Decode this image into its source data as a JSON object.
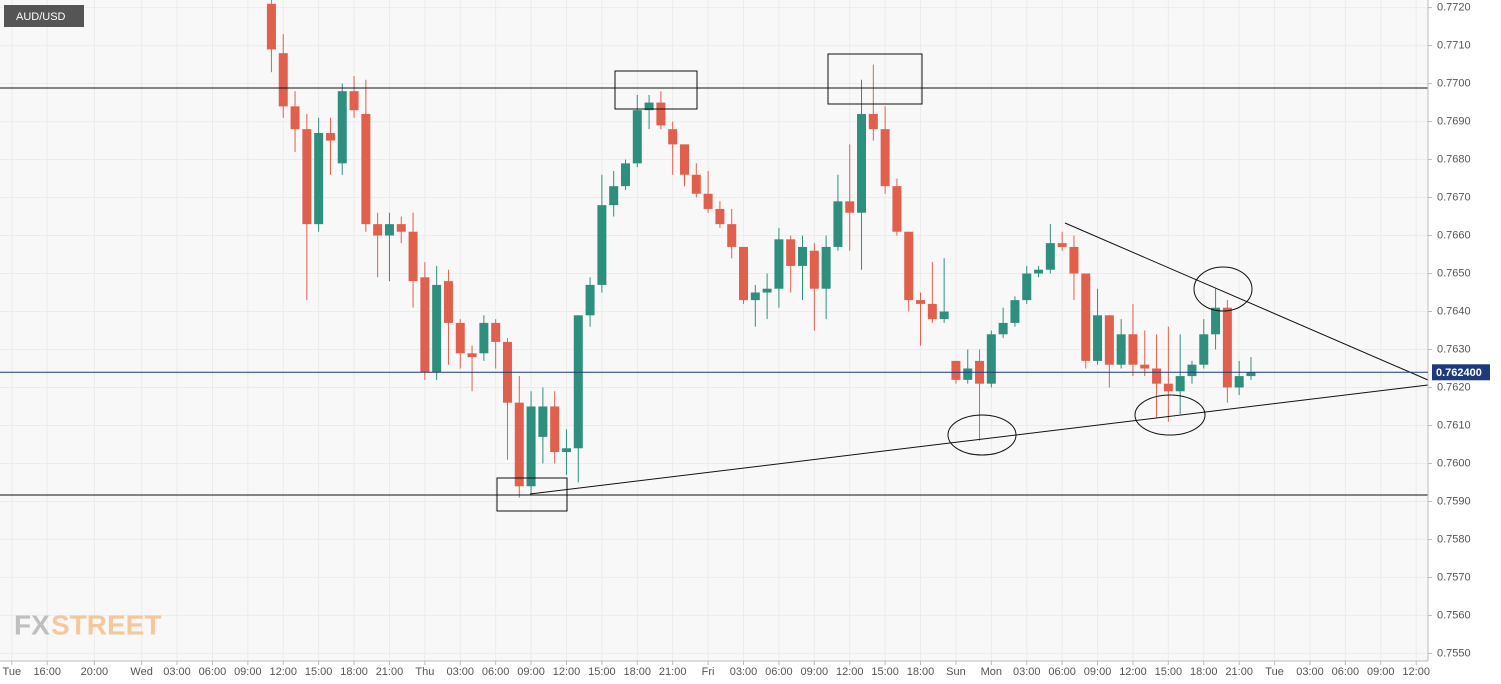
{
  "chart_data": {
    "type": "candlestick",
    "symbol_label": "AUD/USD",
    "logo": {
      "fx": "FX",
      "street": "STREET"
    },
    "xlim": [
      -12,
      109
    ],
    "xticks": [
      {
        "value": -11,
        "label": "Tue"
      },
      {
        "value": -8,
        "label": "16:00"
      },
      {
        "value": -4,
        "label": "20:00"
      },
      {
        "value": 0,
        "label": "Wed"
      },
      {
        "value": 3,
        "label": "03:00"
      },
      {
        "value": 6,
        "label": "06:00"
      },
      {
        "value": 9,
        "label": "09:00"
      },
      {
        "value": 12,
        "label": "12:00"
      },
      {
        "value": 15,
        "label": "15:00"
      },
      {
        "value": 18,
        "label": "18:00"
      },
      {
        "value": 21,
        "label": "21:00"
      },
      {
        "value": 24,
        "label": "Thu"
      },
      {
        "value": 27,
        "label": "03:00"
      },
      {
        "value": 30,
        "label": "06:00"
      },
      {
        "value": 33,
        "label": "09:00"
      },
      {
        "value": 36,
        "label": "12:00"
      },
      {
        "value": 39,
        "label": "15:00"
      },
      {
        "value": 42,
        "label": "18:00"
      },
      {
        "value": 45,
        "label": "21:00"
      },
      {
        "value": 48,
        "label": "Fri"
      },
      {
        "value": 51,
        "label": "03:00"
      },
      {
        "value": 54,
        "label": "06:00"
      },
      {
        "value": 57,
        "label": "09:00"
      },
      {
        "value": 60,
        "label": "12:00"
      },
      {
        "value": 63,
        "label": "15:00"
      },
      {
        "value": 66,
        "label": "18:00"
      },
      {
        "value": 69,
        "label": "Sun"
      },
      {
        "value": 72,
        "label": "Mon"
      },
      {
        "value": 75,
        "label": "03:00"
      },
      {
        "value": 78,
        "label": "06:00"
      },
      {
        "value": 81,
        "label": "09:00"
      },
      {
        "value": 84,
        "label": "12:00"
      },
      {
        "value": 87,
        "label": "15:00"
      },
      {
        "value": 90,
        "label": "18:00"
      },
      {
        "value": 93,
        "label": "21:00"
      },
      {
        "value": 96,
        "label": "Tue"
      },
      {
        "value": 99,
        "label": "03:00"
      },
      {
        "value": 102,
        "label": "06:00"
      },
      {
        "value": 105,
        "label": "09:00"
      },
      {
        "value": 108,
        "label": "12:00"
      }
    ],
    "ylim": [
      0.7548,
      0.7722
    ],
    "yticks": [
      {
        "value": 0.772,
        "label": "0.7720"
      },
      {
        "value": 0.771,
        "label": "0.7710"
      },
      {
        "value": 0.77,
        "label": "0.7700"
      },
      {
        "value": 0.769,
        "label": "0.7690"
      },
      {
        "value": 0.768,
        "label": "0.7680"
      },
      {
        "value": 0.767,
        "label": "0.7670"
      },
      {
        "value": 0.766,
        "label": "0.7660"
      },
      {
        "value": 0.765,
        "label": "0.7650"
      },
      {
        "value": 0.764,
        "label": "0.7640"
      },
      {
        "value": 0.763,
        "label": "0.7630"
      },
      {
        "value": 0.762,
        "label": "0.7620"
      },
      {
        "value": 0.761,
        "label": "0.7610"
      },
      {
        "value": 0.76,
        "label": "0.7600"
      },
      {
        "value": 0.759,
        "label": "0.7590"
      },
      {
        "value": 0.758,
        "label": "0.7580"
      },
      {
        "value": 0.757,
        "label": "0.7570"
      },
      {
        "value": 0.756,
        "label": "0.7560"
      },
      {
        "value": 0.755,
        "label": "0.7550"
      }
    ],
    "grid": true,
    "up_color": "#2f8f7f",
    "down_color": "#e0604d",
    "last_price": {
      "value": 0.7624,
      "label": "0.762400",
      "color": "#1f3a7a"
    },
    "x": [
      11,
      12,
      13,
      14,
      15,
      16,
      17,
      18,
      19,
      20,
      21,
      22,
      23,
      24,
      25,
      26,
      27,
      28,
      29,
      30,
      31,
      32,
      33,
      34,
      35,
      36,
      37,
      38,
      39,
      40,
      41,
      42,
      43,
      44,
      45,
      46,
      47,
      48,
      49,
      50,
      51,
      52,
      53,
      54,
      55,
      56,
      57,
      58,
      59,
      60,
      61,
      62,
      63,
      64,
      65,
      66,
      67,
      68,
      69,
      70,
      71,
      72,
      73,
      74,
      75,
      76,
      77,
      78,
      79,
      80,
      81,
      82,
      83,
      84,
      85,
      86,
      87,
      88,
      89,
      90,
      91,
      92,
      93,
      94
    ],
    "open": [
      0.7721,
      0.7708,
      0.7694,
      0.7688,
      0.7663,
      0.7687,
      0.7679,
      0.7698,
      0.7692,
      0.7663,
      0.766,
      0.7663,
      0.7661,
      0.7649,
      0.7624,
      0.7648,
      0.7637,
      0.7629,
      0.7629,
      0.7637,
      0.7632,
      0.7616,
      0.7594,
      0.7607,
      0.7615,
      0.7603,
      0.7604,
      0.7639,
      0.7647,
      0.7668,
      0.7673,
      0.7679,
      0.7693,
      0.7695,
      0.7688,
      0.7684,
      0.7676,
      0.7671,
      0.7667,
      0.7663,
      0.7657,
      0.7643,
      0.7645,
      0.7646,
      0.7659,
      0.7652,
      0.7656,
      0.7646,
      0.7657,
      0.7669,
      0.7666,
      0.7692,
      0.7688,
      0.7673,
      0.7661,
      0.7643,
      0.7642,
      0.7638,
      0.7627,
      0.7622,
      0.7627,
      0.7621,
      0.7634,
      0.7637,
      0.7643,
      0.765,
      0.7651,
      0.7658,
      0.7657,
      0.765,
      0.7627,
      0.7639,
      0.7626,
      0.7634,
      0.7626,
      0.7625,
      0.7621,
      0.7619,
      0.7623,
      0.7626,
      0.7634,
      0.7641,
      0.762,
      0.7623
    ],
    "high": [
      0.7722,
      0.7713,
      0.7698,
      0.7692,
      0.7691,
      0.7691,
      0.77,
      0.7702,
      0.7701,
      0.7666,
      0.7666,
      0.7665,
      0.7666,
      0.7653,
      0.7652,
      0.7651,
      0.7638,
      0.7631,
      0.7639,
      0.7638,
      0.7633,
      0.7623,
      0.7619,
      0.762,
      0.7619,
      0.7609,
      0.7639,
      0.7649,
      0.7676,
      0.7677,
      0.768,
      0.7697,
      0.7697,
      0.7698,
      0.769,
      0.7684,
      0.7679,
      0.7677,
      0.7669,
      0.7667,
      0.7657,
      0.7647,
      0.765,
      0.7662,
      0.766,
      0.766,
      0.7658,
      0.766,
      0.7676,
      0.7684,
      0.7701,
      0.7705,
      0.7694,
      0.7675,
      0.7661,
      0.7645,
      0.7653,
      0.7654,
      0.7627,
      0.763,
      0.763,
      0.7635,
      0.7641,
      0.7644,
      0.7652,
      0.7652,
      0.7663,
      0.7661,
      0.766,
      0.765,
      0.7646,
      0.7639,
      0.7638,
      0.7642,
      0.7635,
      0.7634,
      0.7636,
      0.7634,
      0.7627,
      0.7638,
      0.7646,
      0.7643,
      0.7627,
      0.7628
    ],
    "low": [
      0.7703,
      0.7691,
      0.7682,
      0.7643,
      0.7661,
      0.7676,
      0.7676,
      0.7691,
      0.7661,
      0.7649,
      0.7648,
      0.7658,
      0.7641,
      0.7622,
      0.7622,
      0.7626,
      0.7625,
      0.7619,
      0.7627,
      0.7625,
      0.7601,
      0.7591,
      0.7592,
      0.76,
      0.76,
      0.7597,
      0.7595,
      0.7636,
      0.7645,
      0.7665,
      0.7672,
      0.7678,
      0.7688,
      0.7688,
      0.7676,
      0.7673,
      0.767,
      0.7666,
      0.7662,
      0.7654,
      0.7642,
      0.7636,
      0.7638,
      0.7641,
      0.7645,
      0.7643,
      0.7635,
      0.7638,
      0.7656,
      0.7656,
      0.7651,
      0.7685,
      0.7671,
      0.766,
      0.764,
      0.7631,
      0.7637,
      0.7637,
      0.7621,
      0.7621,
      0.7606,
      0.762,
      0.7633,
      0.7636,
      0.7642,
      0.7649,
      0.765,
      0.7656,
      0.7643,
      0.7625,
      0.7626,
      0.762,
      0.7625,
      0.7623,
      0.7623,
      0.7612,
      0.7611,
      0.7613,
      0.7621,
      0.7625,
      0.763,
      0.7616,
      0.7618,
      0.7622
    ],
    "close": [
      0.7709,
      0.7694,
      0.7688,
      0.7663,
      0.7687,
      0.7685,
      0.7698,
      0.7693,
      0.7663,
      0.766,
      0.7663,
      0.7661,
      0.7648,
      0.7624,
      0.7647,
      0.7637,
      0.7629,
      0.7628,
      0.7637,
      0.7632,
      0.7616,
      0.7594,
      0.7615,
      0.7615,
      0.7603,
      0.7604,
      0.7639,
      0.7647,
      0.7668,
      0.7673,
      0.7679,
      0.7693,
      0.7695,
      0.7689,
      0.7684,
      0.7676,
      0.7671,
      0.7667,
      0.7663,
      0.7657,
      0.7643,
      0.7645,
      0.7646,
      0.7659,
      0.7652,
      0.7657,
      0.7646,
      0.7657,
      0.7669,
      0.7666,
      0.7692,
      0.7688,
      0.7673,
      0.7661,
      0.7643,
      0.7642,
      0.7638,
      0.764,
      0.7622,
      0.7625,
      0.7621,
      0.7634,
      0.7637,
      0.7643,
      0.765,
      0.7651,
      0.7658,
      0.7657,
      0.765,
      0.7627,
      0.7639,
      0.7626,
      0.7634,
      0.7626,
      0.7625,
      0.7621,
      0.7619,
      0.7623,
      0.7626,
      0.7634,
      0.7641,
      0.762,
      0.7623,
      0.7624
    ]
  }
}
